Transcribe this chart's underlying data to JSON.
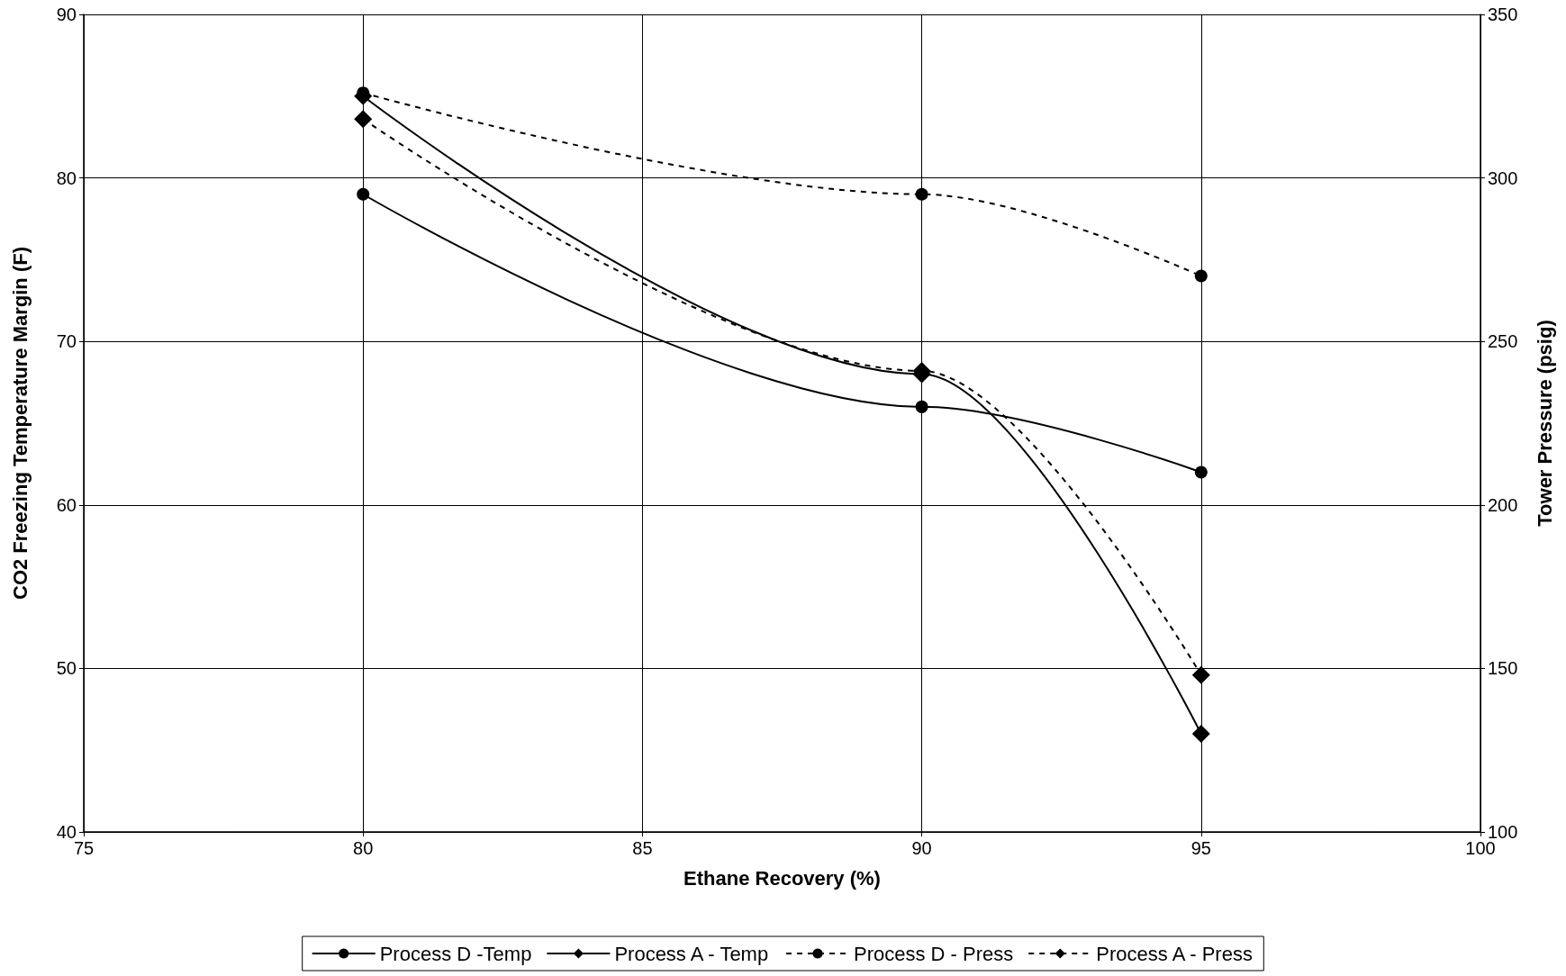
{
  "chart_data": {
    "type": "line",
    "xlabel": "Ethane Recovery (%)",
    "ylabel": "CO2 Freezing Temperature Margin (F)",
    "y2label": "Tower Pressure (psig)",
    "x": [
      80,
      90,
      95
    ],
    "series": [
      {
        "name": "Process D -Temp",
        "color": "#000000",
        "values": [
          79,
          66,
          62
        ],
        "marker": "circle",
        "line_style": "solid"
      },
      {
        "name": "Process A - Temp",
        "color": "#000000",
        "values": [
          85,
          68,
          46
        ],
        "marker": "diamond",
        "line_style": "solid"
      },
      {
        "name": "Process D - Press",
        "color": "#000000",
        "values": [
          326,
          295,
          270
        ],
        "marker": "circle",
        "line_style": "dashed",
        "axis": "y2"
      },
      {
        "name": "Process A - Press",
        "color": "#000000",
        "values": [
          318,
          241,
          148
        ],
        "marker": "diamond",
        "line_style": "dashed",
        "axis": "y2"
      }
    ],
    "xlim": [
      75,
      100
    ],
    "xticks": [
      75,
      80,
      85,
      90,
      95,
      100
    ],
    "ylim": [
      40,
      90
    ],
    "yticks": [
      40,
      50,
      60,
      70,
      80,
      90
    ],
    "y2lim": [
      100,
      350
    ],
    "y2ticks": [
      100,
      150,
      200,
      250,
      300,
      350
    ],
    "grid": true,
    "legend": "bottom"
  }
}
